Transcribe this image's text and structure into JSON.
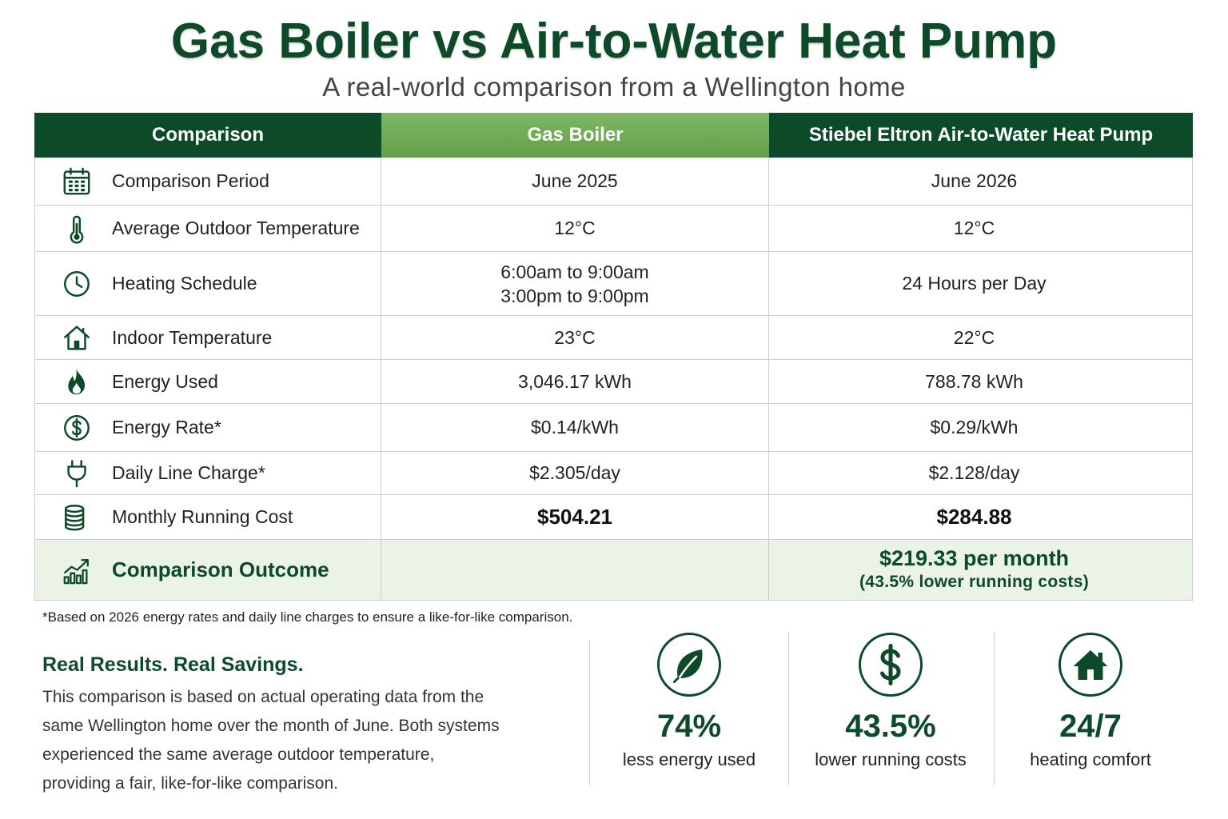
{
  "title": "Gas Boiler vs Air-to-Water Heat Pump",
  "subtitle": "A real-world comparison from a Wellington home",
  "colors": {
    "primary": "#0d4a28",
    "header_accent": "#6aab4c",
    "outcome_background": "#eaf3e6",
    "text": "#222222"
  },
  "table": {
    "headers": {
      "comparison": "Comparison",
      "gas_boiler": "Gas Boiler",
      "heat_pump": "Stiebel Eltron Air-to-Water Heat Pump"
    },
    "rows": [
      {
        "icon": "calendar-icon",
        "label": "Comparison Period",
        "gas_boiler": "June 2025",
        "heat_pump": "June 2026"
      },
      {
        "icon": "thermometer-icon",
        "label": "Average Outdoor Temperature",
        "gas_boiler": "12°C",
        "heat_pump": "12°C"
      },
      {
        "icon": "clock-icon",
        "label": "Heating Schedule",
        "gas_boiler": [
          "6:00am to 9:00am",
          "3:00pm to 9:00pm"
        ],
        "heat_pump": "24 Hours per Day"
      },
      {
        "icon": "house-icon",
        "label": "Indoor Temperature",
        "gas_boiler": "23°C",
        "heat_pump": "22°C"
      },
      {
        "icon": "flame-icon",
        "label": "Energy Used",
        "gas_boiler": "3,046.17 kWh",
        "heat_pump": "788.78 kWh"
      },
      {
        "icon": "dollar-circle-icon",
        "label": "Energy Rate*",
        "gas_boiler": "$0.14/kWh",
        "heat_pump": "$0.29/kWh"
      },
      {
        "icon": "plug-icon",
        "label": "Daily Line Charge*",
        "gas_boiler": "$2.305/day",
        "heat_pump": "$2.128/day"
      },
      {
        "icon": "coins-icon",
        "label": "Monthly Running Cost",
        "gas_boiler": "$504.21",
        "heat_pump": "$284.88"
      }
    ],
    "outcome": {
      "icon": "growth-chart-icon",
      "label": "Comparison Outcome",
      "heat_pump": "$219.33 per month",
      "heat_pump_note": "(43.5% lower running costs)"
    }
  },
  "footnote": "*Based on 2026 energy rates and daily line charges to ensure a like-for-like comparison.",
  "summary": {
    "heading": "Real Results. Real Savings.",
    "lines": [
      "This comparison is based on actual operating data from the",
      "same Wellington home over the month of June. Both systems",
      "experienced the same average outdoor temperature,",
      "providing a fair, like-for-like comparison."
    ]
  },
  "stats": [
    {
      "icon": "leaf-icon",
      "value": "74%",
      "label": "less energy used"
    },
    {
      "icon": "dollar-icon",
      "value": "43.5%",
      "label": "lower running costs"
    },
    {
      "icon": "house-icon",
      "value": "24/7",
      "label": "heating comfort"
    }
  ]
}
